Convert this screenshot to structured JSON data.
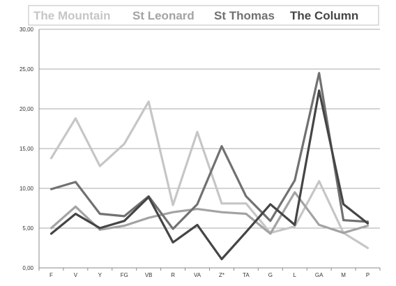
{
  "chart_data": {
    "type": "line",
    "title": "",
    "xlabel": "",
    "ylabel": "",
    "categories": [
      "F",
      "V",
      "Y",
      "FG",
      "VB",
      "R",
      "VA",
      "Z*",
      "TA",
      "G",
      "L",
      "GA",
      "M",
      "P"
    ],
    "ylim": [
      0,
      30
    ],
    "yticks": [
      "0,00",
      "5,00",
      "10,00",
      "15,00",
      "20,00",
      "25,00",
      "30,00"
    ],
    "grid": true,
    "legend_position": "top",
    "series": [
      {
        "name": "The Mountain",
        "color": "#c6c6c6",
        "values": [
          13.8,
          18.8,
          12.8,
          15.6,
          20.9,
          7.9,
          17.1,
          8.1,
          8.1,
          4.4,
          5.2,
          10.9,
          4.4,
          2.5
        ]
      },
      {
        "name": "St Leonard",
        "color": "#a3a3a3",
        "values": [
          5.0,
          7.7,
          4.8,
          5.3,
          6.3,
          7.0,
          7.4,
          7.0,
          6.8,
          4.3,
          9.5,
          5.4,
          4.4,
          5.3
        ]
      },
      {
        "name": "St Thomas",
        "color": "#717171",
        "values": [
          9.9,
          10.8,
          6.8,
          6.5,
          9.0,
          4.9,
          8.0,
          15.3,
          9.0,
          5.9,
          11.0,
          24.5,
          6.0,
          5.8
        ]
      },
      {
        "name": "The Column",
        "color": "#454545",
        "values": [
          4.3,
          6.8,
          5.0,
          5.9,
          8.9,
          3.2,
          5.4,
          1.1,
          4.5,
          8.0,
          5.4,
          22.3,
          8.0,
          5.6
        ]
      }
    ]
  }
}
